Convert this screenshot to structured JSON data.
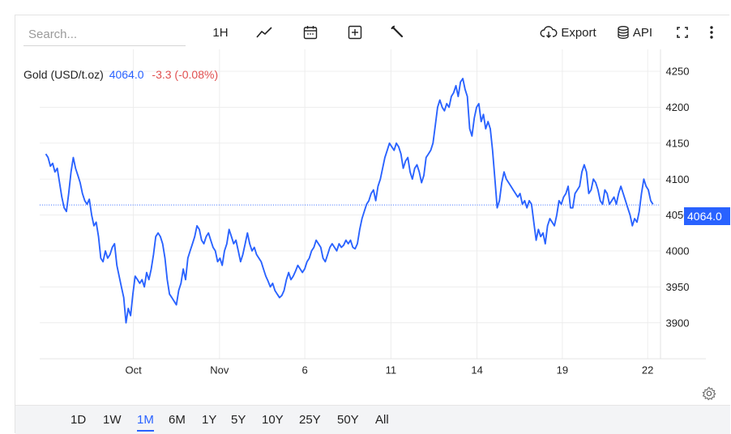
{
  "toolbar": {
    "search_placeholder": "Search...",
    "interval_label": "1H",
    "export_label": "Export",
    "api_label": "API",
    "icons": [
      "line-chart-icon",
      "calendar-icon",
      "plus-box-icon",
      "wrench-icon",
      "cloud-download-icon",
      "database-icon",
      "fullscreen-icon",
      "more-vertical-icon"
    ]
  },
  "legend": {
    "symbol": "Gold (USD/t.oz)",
    "price": "4064.0",
    "change": "-3.3 (-0.08%)"
  },
  "price_tag": "4064.0",
  "colors": {
    "line": "#2962ff",
    "negative": "#e04f4f",
    "grid": "#ececec"
  },
  "ranges": [
    "1D",
    "1W",
    "1M",
    "6M",
    "1Y",
    "5Y",
    "10Y",
    "25Y",
    "50Y",
    "All"
  ],
  "active_range": "1M",
  "chart_data": {
    "type": "line",
    "y_axis": {
      "ticks": [
        3900,
        3950,
        4000,
        4050,
        4100,
        4150,
        4200,
        4250
      ],
      "tick_labels": [
        "3900",
        "3950",
        "4000",
        "4050",
        "4100",
        "4150",
        "4200",
        "4250"
      ],
      "range": [
        3850,
        4270
      ],
      "position": "right"
    },
    "x_axis": {
      "tick_labels": [
        "Oct",
        "Nov",
        "6",
        "11",
        "14",
        "19",
        "22"
      ]
    },
    "grid": true,
    "current_price_line": 4064.0,
    "series": [
      {
        "values": [
          4135,
          4130,
          4118,
          4122,
          4110,
          4115,
          4095,
          4075,
          4060,
          4055,
          4080,
          4110,
          4130,
          4115,
          4105,
          4095,
          4080,
          4070,
          4065,
          4072,
          4050,
          4035,
          4040,
          4020,
          3990,
          3985,
          4000,
          3990,
          3995,
          4005,
          4010,
          3980,
          3965,
          3950,
          3935,
          3900,
          3920,
          3910,
          3940,
          3965,
          3960,
          3955,
          3960,
          3950,
          3970,
          3960,
          3975,
          3995,
          4020,
          4025,
          4020,
          4010,
          3990,
          3960,
          3940,
          3935,
          3930,
          3925,
          3945,
          3955,
          3975,
          3960,
          3990,
          4000,
          4010,
          4020,
          4035,
          4030,
          4015,
          4010,
          4020,
          4025,
          4015,
          4005,
          4000,
          3985,
          3990,
          3980,
          4000,
          4010,
          4030,
          4020,
          4010,
          4015,
          4000,
          3985,
          3995,
          4010,
          4025,
          4010,
          4000,
          4005,
          3995,
          3990,
          3985,
          3975,
          3965,
          3958,
          3950,
          3955,
          3945,
          3940,
          3935,
          3938,
          3945,
          3960,
          3970,
          3960,
          3965,
          3972,
          3980,
          3975,
          3970,
          3975,
          3985,
          3990,
          4000,
          4005,
          4015,
          4010,
          4005,
          3990,
          3985,
          3995,
          4005,
          4010,
          4005,
          4000,
          4010,
          4005,
          4008,
          4015,
          4010,
          4015,
          4005,
          4003,
          4010,
          4030,
          4045,
          4055,
          4065,
          4070,
          4080,
          4085,
          4070,
          4090,
          4100,
          4115,
          4130,
          4140,
          4150,
          4145,
          4140,
          4150,
          4145,
          4135,
          4115,
          4125,
          4130,
          4110,
          4100,
          4115,
          4120,
          4110,
          4095,
          4105,
          4130,
          4135,
          4140,
          4150,
          4175,
          4200,
          4210,
          4200,
          4195,
          4205,
          4200,
          4215,
          4220,
          4230,
          4215,
          4235,
          4240,
          4225,
          4215,
          4170,
          4160,
          4185,
          4200,
          4205,
          4180,
          4190,
          4170,
          4180,
          4170,
          4140,
          4100,
          4060,
          4070,
          4095,
          4110,
          4100,
          4095,
          4090,
          4085,
          4080,
          4075,
          4080,
          4065,
          4070,
          4060,
          4070,
          4065,
          4040,
          4015,
          4030,
          4020,
          4025,
          4010,
          4035,
          4045,
          4040,
          4035,
          4050,
          4070,
          4065,
          4075,
          4080,
          4090,
          4060,
          4060,
          4080,
          4085,
          4090,
          4110,
          4120,
          4110,
          4080,
          4085,
          4100,
          4095,
          4085,
          4070,
          4065,
          4085,
          4080,
          4065,
          4070,
          4075,
          4065,
          4080,
          4090,
          4080,
          4070,
          4060,
          4050,
          4035,
          4045,
          4040,
          4055,
          4080,
          4100,
          4090,
          4085,
          4070,
          4065
        ]
      }
    ]
  }
}
